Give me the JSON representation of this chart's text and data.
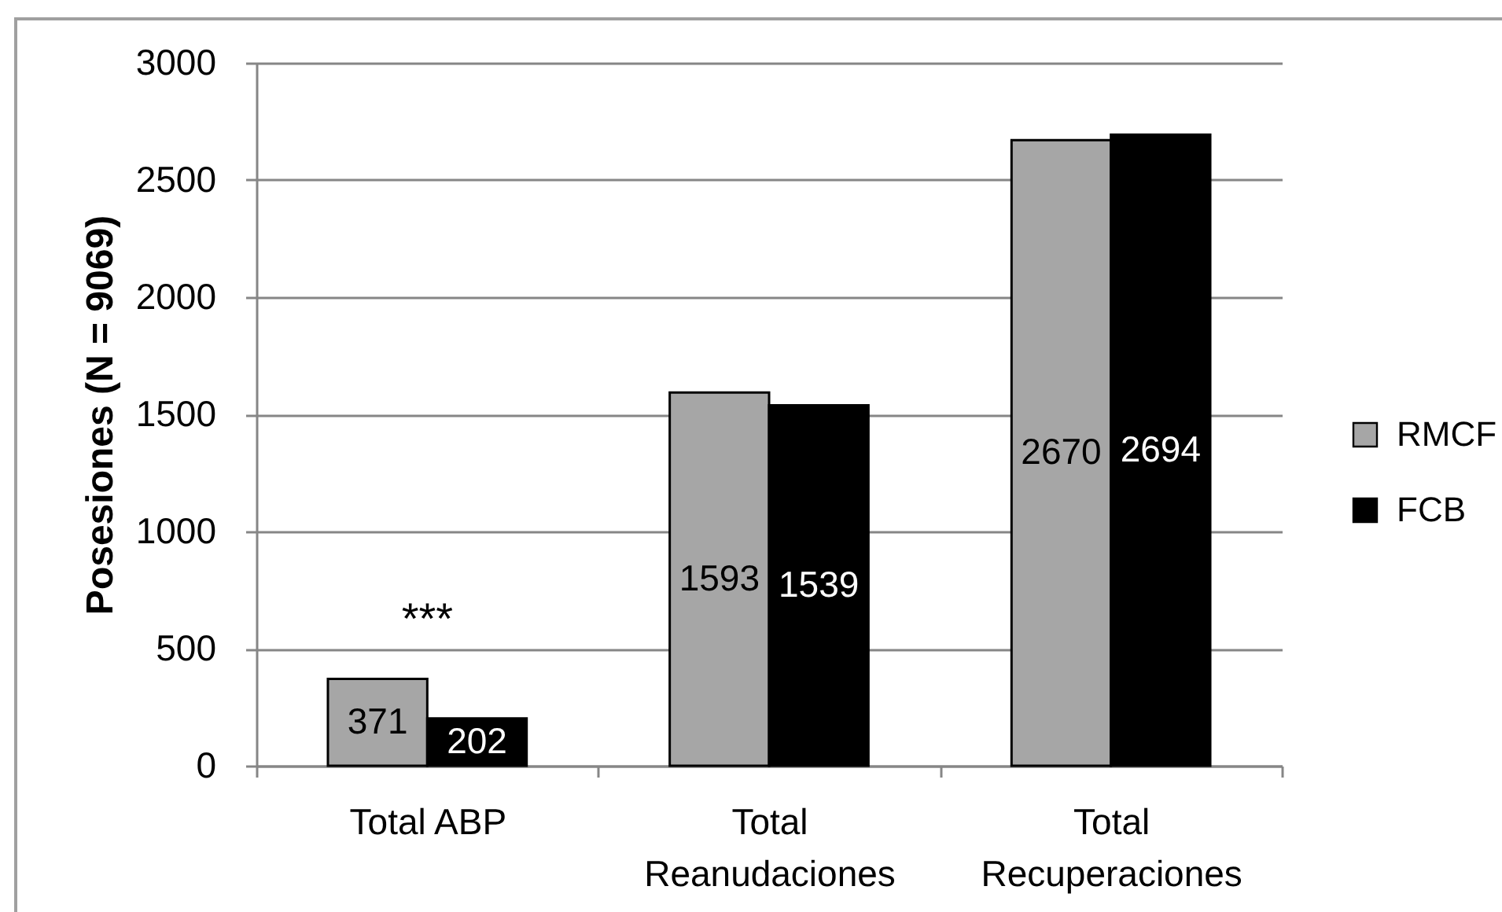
{
  "chart_data": {
    "type": "bar",
    "ylabel": "Posesiones (N = 9069)",
    "categories": [
      "Total ABP",
      "Total Reanudaciones",
      "Total Recuperaciones"
    ],
    "series": [
      {
        "name": "RMCF",
        "color": "#a6a6a6",
        "values": [
          371,
          1593,
          2670
        ]
      },
      {
        "name": "FCB",
        "color": "#000000",
        "values": [
          202,
          1539,
          2694
        ]
      }
    ],
    "ylim": [
      0,
      3000
    ],
    "yticks": [
      0,
      500,
      1000,
      1500,
      2000,
      2500,
      3000
    ],
    "grid": "y",
    "legend": "right",
    "data_labels": true,
    "annotations": [
      "***"
    ]
  }
}
